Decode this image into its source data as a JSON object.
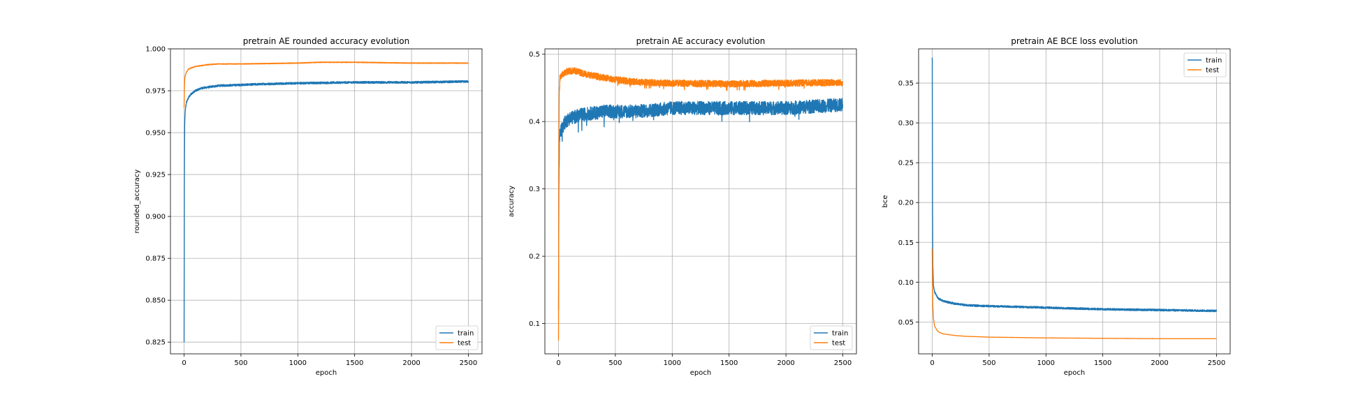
{
  "colors": {
    "train": "#1f77b4",
    "test": "#ff7f0e",
    "grid": "#b0b0b0"
  },
  "chart_data": [
    {
      "type": "line",
      "title": "pretrain AE rounded accuracy evolution",
      "xlabel": "epoch",
      "ylabel": "rounded_accuracy",
      "xlim": [
        -120,
        2620
      ],
      "ylim": [
        0.818,
        1.0
      ],
      "xticks": [
        0,
        500,
        1000,
        1500,
        2000,
        2500
      ],
      "yticks": [
        0.825,
        0.85,
        0.875,
        0.9,
        0.925,
        0.95,
        0.975,
        1.0
      ],
      "ytick_labels": [
        "0.825",
        "0.850",
        "0.875",
        "0.900",
        "0.925",
        "0.950",
        "0.975",
        "1.000"
      ],
      "grid": true,
      "legend": "lower right",
      "series": [
        {
          "name": "train",
          "color": "#1f77b4",
          "noise": 0.0006,
          "x": [
            0,
            2,
            5,
            10,
            20,
            40,
            60,
            100,
            150,
            200,
            300,
            500,
            700,
            1000,
            1500,
            2000,
            2500
          ],
          "y": [
            0.825,
            0.92,
            0.955,
            0.963,
            0.968,
            0.971,
            0.973,
            0.975,
            0.9765,
            0.977,
            0.978,
            0.9785,
            0.979,
            0.9795,
            0.98,
            0.98,
            0.9805
          ]
        },
        {
          "name": "test",
          "color": "#ff7f0e",
          "noise": 0.0002,
          "x": [
            0,
            2,
            5,
            10,
            20,
            40,
            60,
            100,
            150,
            200,
            300,
            500,
            1000,
            1200,
            1500,
            2000,
            2500
          ],
          "y": [
            0.965,
            0.976,
            0.982,
            0.984,
            0.986,
            0.988,
            0.9885,
            0.9895,
            0.99,
            0.9905,
            0.991,
            0.991,
            0.9915,
            0.992,
            0.992,
            0.9915,
            0.9915
          ]
        }
      ]
    },
    {
      "type": "line",
      "title": "pretrain AE accuracy evolution",
      "xlabel": "epoch",
      "ylabel": "accuracy",
      "xlim": [
        -120,
        2620
      ],
      "ylim": [
        0.055,
        0.508
      ],
      "xticks": [
        0,
        500,
        1000,
        1500,
        2000,
        2500
      ],
      "yticks": [
        0.1,
        0.2,
        0.3,
        0.4,
        0.5
      ],
      "ytick_labels": [
        "0.1",
        "0.2",
        "0.3",
        "0.4",
        "0.5"
      ],
      "grid": true,
      "legend": "lower right",
      "series": [
        {
          "name": "train",
          "color": "#1f77b4",
          "noise": 0.01,
          "x": [
            0,
            3,
            8,
            15,
            30,
            60,
            100,
            200,
            400,
            700,
            1000,
            1500,
            2000,
            2500
          ],
          "y": [
            0.12,
            0.3,
            0.37,
            0.385,
            0.39,
            0.4,
            0.405,
            0.41,
            0.415,
            0.415,
            0.42,
            0.42,
            0.42,
            0.425
          ]
        },
        {
          "name": "test",
          "color": "#ff7f0e",
          "noise": 0.005,
          "x": [
            0,
            3,
            6,
            12,
            30,
            80,
            150,
            250,
            400,
            600,
            800,
            1000,
            1500,
            2000,
            2500
          ],
          "y": [
            0.075,
            0.36,
            0.44,
            0.465,
            0.47,
            0.475,
            0.475,
            0.47,
            0.465,
            0.46,
            0.458,
            0.457,
            0.456,
            0.457,
            0.458
          ]
        }
      ]
    },
    {
      "type": "line",
      "title": "pretrain AE BCE loss evolution",
      "xlabel": "epoch",
      "ylabel": "bce",
      "xlim": [
        -120,
        2620
      ],
      "ylim": [
        0.01,
        0.393
      ],
      "xticks": [
        0,
        500,
        1000,
        1500,
        2000,
        2500
      ],
      "yticks": [
        0.05,
        0.1,
        0.15,
        0.2,
        0.25,
        0.3,
        0.35
      ],
      "ytick_labels": [
        "0.05",
        "0.10",
        "0.15",
        "0.20",
        "0.25",
        "0.30",
        "0.35"
      ],
      "grid": true,
      "legend": "upper right",
      "series": [
        {
          "name": "train",
          "color": "#1f77b4",
          "noise": 0.0012,
          "x": [
            0,
            2,
            5,
            10,
            20,
            40,
            60,
            100,
            200,
            300,
            500,
            1000,
            1500,
            2000,
            2500
          ],
          "y": [
            0.382,
            0.2,
            0.12,
            0.097,
            0.088,
            0.082,
            0.079,
            0.076,
            0.073,
            0.071,
            0.07,
            0.068,
            0.066,
            0.065,
            0.064
          ]
        },
        {
          "name": "test",
          "color": "#ff7f0e",
          "noise": 0.0,
          "x": [
            0,
            2,
            5,
            10,
            20,
            40,
            60,
            100,
            200,
            300,
            500,
            1000,
            1500,
            2000,
            2500
          ],
          "y": [
            0.142,
            0.1,
            0.07,
            0.055,
            0.045,
            0.04,
            0.037,
            0.035,
            0.033,
            0.032,
            0.031,
            0.03,
            0.0295,
            0.029,
            0.029
          ]
        }
      ]
    }
  ]
}
